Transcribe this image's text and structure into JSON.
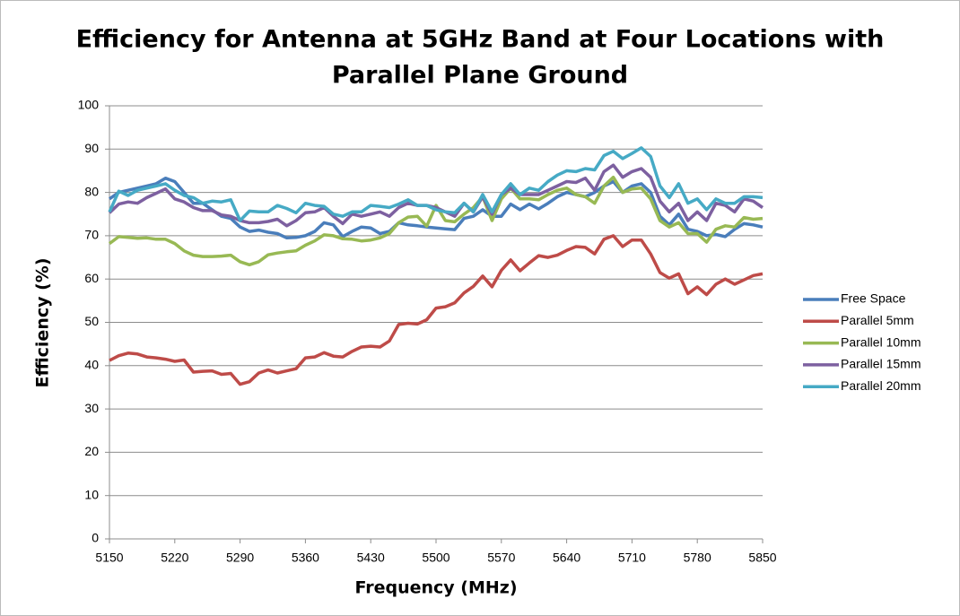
{
  "chart_data": {
    "type": "line",
    "title": [
      "Efficiency for Antenna at 5GHz Band at Four Locations with",
      "Parallel Plane Ground"
    ],
    "x_label": "Frequency  (MHz)",
    "y_label": "Efficiency (%)",
    "x": [
      5150,
      5160,
      5170,
      5180,
      5190,
      5200,
      5210,
      5220,
      5230,
      5240,
      5250,
      5260,
      5270,
      5280,
      5290,
      5300,
      5310,
      5320,
      5330,
      5340,
      5350,
      5360,
      5370,
      5380,
      5390,
      5400,
      5410,
      5420,
      5430,
      5440,
      5450,
      5460,
      5470,
      5480,
      5490,
      5500,
      5510,
      5520,
      5530,
      5540,
      5550,
      5560,
      5570,
      5580,
      5590,
      5600,
      5610,
      5620,
      5630,
      5640,
      5650,
      5660,
      5670,
      5680,
      5690,
      5700,
      5710,
      5720,
      5730,
      5740,
      5750,
      5760,
      5770,
      5780,
      5790,
      5800,
      5810,
      5820,
      5830,
      5840,
      5850
    ],
    "series": [
      {
        "name": "Free Space",
        "color": "#4a7ebb",
        "values": [
          78.5,
          80,
          80.5,
          81,
          81.5,
          82,
          83.3,
          82.5,
          80,
          77.5,
          77.5,
          76,
          74.5,
          74,
          72,
          71,
          71.3,
          70.8,
          70.5,
          69.5,
          69.6,
          70,
          71,
          73,
          72.5,
          69.8,
          71,
          72,
          71.8,
          70.5,
          71,
          73,
          72.5,
          72.3,
          72,
          71.8,
          71.6,
          71.4,
          74,
          74.5,
          76,
          74.5,
          74.5,
          77.3,
          76,
          77.3,
          76.2,
          77.5,
          79,
          80,
          79.5,
          79,
          80,
          81.5,
          82.5,
          80,
          81.5,
          82,
          80,
          74.5,
          72.5,
          75,
          71.5,
          71,
          70,
          70.3,
          69.8,
          71.5,
          72.8,
          72.5,
          72
        ]
      },
      {
        "name": "Parallel 5mm",
        "color": "#be4b48",
        "values": [
          41.2,
          42.3,
          42.9,
          42.7,
          42,
          41.8,
          41.5,
          41,
          41.3,
          38.5,
          38.7,
          38.8,
          38,
          38.2,
          35.7,
          36.3,
          38.3,
          39,
          38.3,
          38.8,
          39.3,
          41.8,
          42,
          43,
          42.2,
          42,
          43.3,
          44.3,
          44.5,
          44.3,
          45.7,
          49.5,
          49.8,
          49.6,
          50.6,
          53.3,
          53.6,
          54.5,
          56.8,
          58.3,
          60.7,
          58.2,
          62,
          64.4,
          61.9,
          63.7,
          65.4,
          65,
          65.5,
          66.6,
          67.5,
          67.3,
          65.8,
          69.2,
          70,
          67.5,
          69,
          69,
          65.8,
          61.5,
          60.2,
          61.2,
          56.6,
          58.2,
          56.4,
          58.8,
          60,
          58.8,
          59.8,
          60.8,
          61.2
        ]
      },
      {
        "name": "Parallel 10mm",
        "color": "#98b954",
        "values": [
          68.2,
          69.8,
          69.6,
          69.4,
          69.5,
          69.2,
          69.2,
          68.2,
          66.5,
          65.5,
          65.2,
          65.2,
          65.3,
          65.5,
          64,
          63.3,
          64,
          65.6,
          66,
          66.3,
          66.5,
          67.8,
          68.8,
          70.2,
          70,
          69.3,
          69.2,
          68.8,
          69,
          69.5,
          70.5,
          73,
          74.3,
          74.5,
          72.2,
          77,
          73.5,
          73.2,
          75,
          76.5,
          79,
          73.5,
          78.5,
          81,
          78.5,
          78.5,
          78.3,
          79.5,
          80.5,
          81,
          79.5,
          79,
          77.5,
          81.5,
          83.5,
          80,
          80.8,
          81,
          78.5,
          73.5,
          72,
          73,
          70.5,
          70.5,
          68.5,
          71.5,
          72.3,
          72,
          74.2,
          73.8,
          74
        ]
      },
      {
        "name": "Parallel 15mm",
        "color": "#7d60a0",
        "values": [
          75.3,
          77.3,
          77.8,
          77.5,
          78.8,
          79.8,
          80.8,
          78.5,
          77.8,
          76.5,
          75.8,
          75.8,
          74.8,
          74.5,
          73.5,
          73,
          73,
          73.3,
          73.8,
          72.3,
          73.5,
          75.3,
          75.5,
          76.5,
          74.5,
          72.8,
          75,
          74.5,
          75,
          75.5,
          74.5,
          76.5,
          77.5,
          77,
          77,
          76.5,
          75.5,
          74.5,
          77.5,
          75.5,
          79,
          75,
          79.5,
          81,
          79.5,
          79.5,
          79.5,
          80.5,
          81.5,
          82.5,
          82.3,
          83.3,
          80.5,
          84.8,
          86.3,
          83.5,
          84.8,
          85.5,
          83.5,
          78,
          75.5,
          77.5,
          73.5,
          75.5,
          73.5,
          77.5,
          77,
          75.5,
          78.5,
          78,
          76.5
        ]
      },
      {
        "name": "Parallel 20mm",
        "color": "#46aac5",
        "values": [
          75.5,
          80.3,
          79.3,
          80.5,
          81,
          81.5,
          82,
          80.5,
          79.3,
          78.8,
          77.5,
          78,
          77.8,
          78.3,
          73.5,
          75.7,
          75.5,
          75.5,
          77,
          76.3,
          75.3,
          77.5,
          77,
          76.8,
          75,
          74.5,
          75.5,
          75.5,
          77,
          76.8,
          76.5,
          77.3,
          78.3,
          77,
          77,
          76,
          75.5,
          75.3,
          77.5,
          75.5,
          79.5,
          75.5,
          79.5,
          82,
          79.5,
          81,
          80.5,
          82.5,
          84,
          85,
          84.8,
          85.5,
          85.2,
          88.5,
          89.5,
          87.8,
          89,
          90.3,
          88.3,
          81.5,
          78.8,
          82,
          77.5,
          78.5,
          76,
          78.5,
          77.5,
          77.5,
          79,
          79,
          78.8
        ]
      }
    ],
    "xlim": [
      5150,
      5850
    ],
    "xticks": [
      5150,
      5220,
      5290,
      5360,
      5430,
      5500,
      5570,
      5640,
      5710,
      5780,
      5850
    ],
    "ylim": [
      0,
      100
    ],
    "yticks": [
      0,
      10,
      20,
      30,
      40,
      50,
      60,
      70,
      80,
      90,
      100
    ],
    "grid": true,
    "legend": "right"
  }
}
